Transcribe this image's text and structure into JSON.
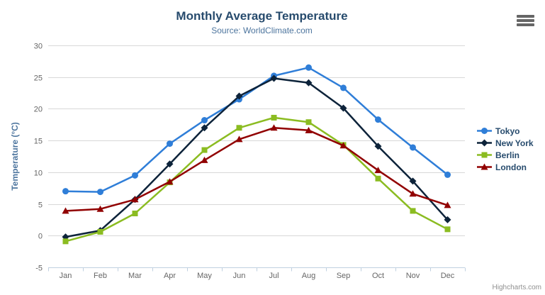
{
  "chart": {
    "title": "Monthly Average Temperature",
    "subtitle": "Source: WorldClimate.com",
    "credits": "Highcharts.com",
    "export_menu_icon": "hamburger-icon"
  },
  "chart_data": {
    "type": "line",
    "title": "Monthly Average Temperature",
    "subtitle": "Source: WorldClimate.com",
    "categories": [
      "Jan",
      "Feb",
      "Mar",
      "Apr",
      "May",
      "Jun",
      "Jul",
      "Aug",
      "Sep",
      "Oct",
      "Nov",
      "Dec"
    ],
    "series": [
      {
        "name": "Tokyo",
        "color": "#2f7ed8",
        "marker": "circle",
        "values": [
          7.0,
          6.9,
          9.5,
          14.5,
          18.2,
          21.5,
          25.2,
          26.5,
          23.3,
          18.3,
          13.9,
          9.6
        ]
      },
      {
        "name": "New York",
        "color": "#0d233a",
        "marker": "diamond",
        "values": [
          -0.2,
          0.8,
          5.7,
          11.3,
          17.0,
          22.0,
          24.8,
          24.1,
          20.1,
          14.1,
          8.6,
          2.5
        ]
      },
      {
        "name": "Berlin",
        "color": "#8bbc21",
        "marker": "square",
        "values": [
          -0.9,
          0.6,
          3.5,
          8.4,
          13.5,
          17.0,
          18.6,
          17.9,
          14.3,
          9.0,
          3.9,
          1.0
        ]
      },
      {
        "name": "London",
        "color": "#910000",
        "marker": "triangle",
        "values": [
          3.9,
          4.2,
          5.7,
          8.5,
          11.9,
          15.2,
          17.0,
          16.6,
          14.2,
          10.3,
          6.6,
          4.8
        ]
      }
    ],
    "xlabel": "",
    "ylabel": "Temperature (°C)",
    "ylim": [
      -5,
      30
    ],
    "ytick_step": 5,
    "grid": true,
    "legend_position": "right"
  },
  "colors": {
    "title": "#274b6d",
    "subtitle": "#4d759e",
    "axis_labels": "#666666",
    "axis_title": "#4d759e",
    "grid_line": "#d8d8d8",
    "axis_line": "#c0d0e0",
    "legend_text": "#274b6d",
    "credits": "#909090",
    "background": "#ffffff"
  }
}
